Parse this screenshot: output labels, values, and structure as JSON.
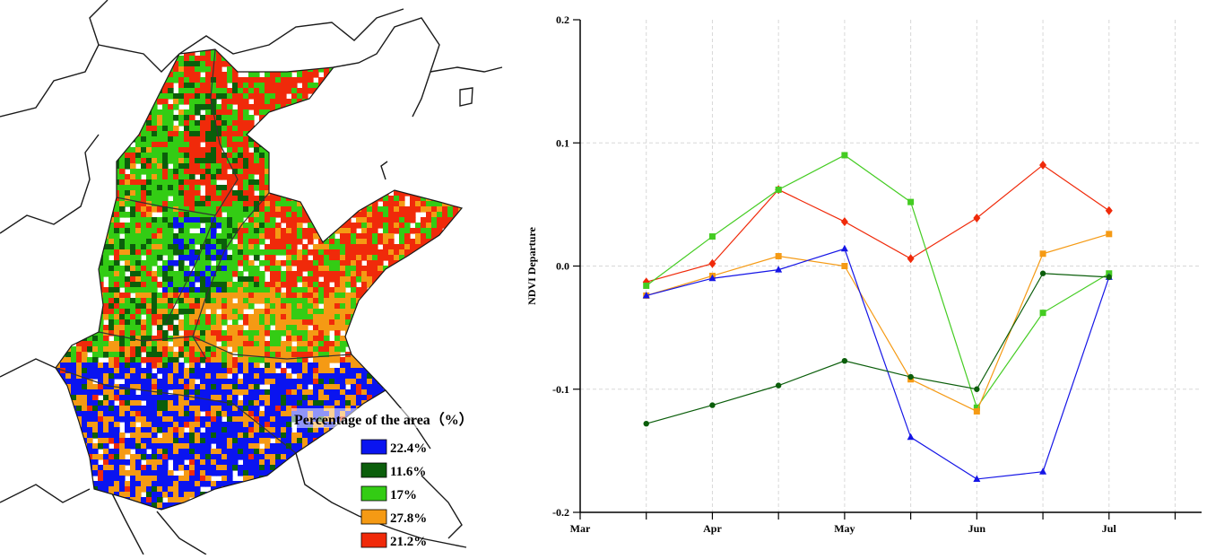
{
  "map": {
    "legend": {
      "title": "Percentage of the area（%）",
      "items": [
        {
          "label": "22.4%",
          "color": "#0a14f0"
        },
        {
          "label": "11.6%",
          "color": "#0b5e0b"
        },
        {
          "label": "17%",
          "color": "#33cc14"
        },
        {
          "label": "27.8%",
          "color": "#f59a14"
        },
        {
          "label": "21.2%",
          "color": "#f02a0a"
        }
      ]
    }
  },
  "chart_data": {
    "type": "line",
    "ylabel": "NDVI Departure",
    "xlabel": "",
    "ylim": [
      -0.2,
      0.2
    ],
    "yticks": [
      0.2,
      0.1,
      0.0,
      -0.1,
      -0.2
    ],
    "ytick_labels": [
      "0.2",
      "0.1",
      "0.0",
      "-0.1",
      "-0.2"
    ],
    "x_month_labels": [
      "Mar",
      "Apr",
      "May",
      "Jun",
      "Jul"
    ],
    "grid": true,
    "x": [
      1.5,
      2,
      2.5,
      3,
      3.5,
      4,
      4.5,
      5
    ],
    "series": [
      {
        "color": "#f02a0a",
        "marker": "diamond",
        "values": [
          -0.013,
          0.002,
          0.062,
          0.036,
          0.006,
          0.039,
          0.082,
          0.045
        ]
      },
      {
        "color": "#44cc22",
        "marker": "square",
        "values": [
          -0.016,
          0.024,
          0.062,
          0.09,
          0.052,
          -0.115,
          -0.038,
          -0.006
        ]
      },
      {
        "color": "#f59a14",
        "marker": "square",
        "values": [
          -0.024,
          -0.008,
          0.008,
          0.0,
          -0.092,
          -0.118,
          0.01,
          0.026
        ]
      },
      {
        "color": "#1515e6",
        "marker": "triangle",
        "values": [
          -0.024,
          -0.01,
          -0.003,
          0.014,
          -0.139,
          -0.173,
          -0.167,
          -0.009
        ]
      },
      {
        "color": "#0b5e0b",
        "marker": "circle",
        "values": [
          -0.128,
          -0.113,
          -0.097,
          -0.077,
          -0.09,
          -0.1,
          -0.006,
          -0.009
        ]
      }
    ]
  }
}
